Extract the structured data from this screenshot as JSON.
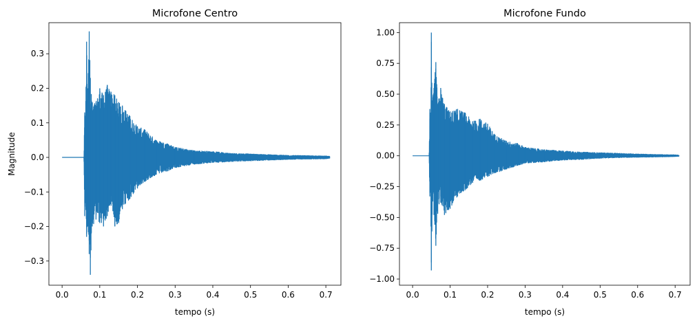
{
  "chart_data": [
    {
      "type": "line",
      "title": "Microfone Centro",
      "xlabel": "tempo (s)",
      "ylabel": "Magnitude",
      "xlim": [
        -0.035,
        0.74
      ],
      "ylim": [
        -0.37,
        0.39
      ],
      "xticks": [
        0.0,
        0.1,
        0.2,
        0.3,
        0.4,
        0.5,
        0.6,
        0.7
      ],
      "xtick_labels": [
        "0.0",
        "0.1",
        "0.2",
        "0.3",
        "0.4",
        "0.5",
        "0.6",
        "0.7"
      ],
      "yticks": [
        -0.3,
        -0.2,
        -0.1,
        0.0,
        0.1,
        0.2,
        0.3
      ],
      "ytick_labels": [
        "−0.3",
        "−0.2",
        "−0.1",
        "0.0",
        "0.1",
        "0.2",
        "0.3"
      ],
      "color": "#1f77b4",
      "series": [
        {
          "x": [
            0.0,
            0.058,
            0.06,
            0.062,
            0.065,
            0.068,
            0.072,
            0.075,
            0.08,
            0.09,
            0.1,
            0.11,
            0.12,
            0.13,
            0.14,
            0.15,
            0.16,
            0.18,
            0.2,
            0.22,
            0.25,
            0.28,
            0.3,
            0.35,
            0.4,
            0.45,
            0.5,
            0.55,
            0.6,
            0.65,
            0.7,
            0.71
          ],
          "upper": [
            0.0,
            0.0,
            0.13,
            0.12,
            0.335,
            0.2,
            0.365,
            0.23,
            0.16,
            0.16,
            0.2,
            0.18,
            0.21,
            0.19,
            0.18,
            0.16,
            0.15,
            0.12,
            0.09,
            0.08,
            0.05,
            0.04,
            0.03,
            0.02,
            0.017,
            0.012,
            0.01,
            0.008,
            0.006,
            0.005,
            0.004,
            0.003
          ],
          "lower": [
            0.0,
            0.0,
            -0.17,
            -0.12,
            -0.23,
            -0.2,
            -0.28,
            -0.34,
            -0.2,
            -0.18,
            -0.19,
            -0.2,
            -0.17,
            -0.14,
            -0.2,
            -0.19,
            -0.15,
            -0.12,
            -0.09,
            -0.07,
            -0.05,
            -0.04,
            -0.03,
            -0.02,
            -0.015,
            -0.012,
            -0.01,
            -0.008,
            -0.006,
            -0.005,
            -0.004,
            -0.003
          ]
        }
      ]
    },
    {
      "type": "line",
      "title": "Microfone Fundo",
      "xlabel": "tempo (s)",
      "ylabel": "",
      "xlim": [
        -0.035,
        0.74
      ],
      "ylim": [
        -1.05,
        1.08
      ],
      "xticks": [
        0.0,
        0.1,
        0.2,
        0.3,
        0.4,
        0.5,
        0.6,
        0.7
      ],
      "xtick_labels": [
        "0.0",
        "0.1",
        "0.2",
        "0.3",
        "0.4",
        "0.5",
        "0.6",
        "0.7"
      ],
      "yticks": [
        -1.0,
        -0.75,
        -0.5,
        -0.25,
        0.0,
        0.25,
        0.5,
        0.75,
        1.0
      ],
      "ytick_labels": [
        "−1.00",
        "−0.75",
        "−0.50",
        "−0.25",
        "0.00",
        "0.25",
        "0.50",
        "0.75",
        "1.00"
      ],
      "color": "#1f77b4",
      "series": [
        {
          "x": [
            0.0,
            0.044,
            0.046,
            0.048,
            0.05,
            0.053,
            0.057,
            0.062,
            0.067,
            0.075,
            0.085,
            0.1,
            0.12,
            0.14,
            0.16,
            0.18,
            0.2,
            0.22,
            0.25,
            0.28,
            0.3,
            0.35,
            0.4,
            0.45,
            0.5,
            0.55,
            0.6,
            0.65,
            0.7,
            0.71
          ],
          "upper": [
            0.0,
            0.0,
            0.38,
            0.35,
            1.0,
            0.45,
            0.55,
            0.76,
            0.42,
            0.55,
            0.42,
            0.36,
            0.38,
            0.35,
            0.28,
            0.3,
            0.26,
            0.17,
            0.12,
            0.1,
            0.07,
            0.05,
            0.04,
            0.03,
            0.025,
            0.02,
            0.015,
            0.01,
            0.008,
            0.005
          ],
          "lower": [
            0.0,
            0.0,
            -0.33,
            -0.3,
            -0.93,
            -0.35,
            -0.48,
            -0.73,
            -0.47,
            -0.38,
            -0.48,
            -0.43,
            -0.33,
            -0.28,
            -0.22,
            -0.2,
            -0.17,
            -0.14,
            -0.11,
            -0.08,
            -0.06,
            -0.05,
            -0.035,
            -0.03,
            -0.02,
            -0.015,
            -0.012,
            -0.01,
            -0.006,
            -0.005
          ]
        }
      ]
    }
  ]
}
